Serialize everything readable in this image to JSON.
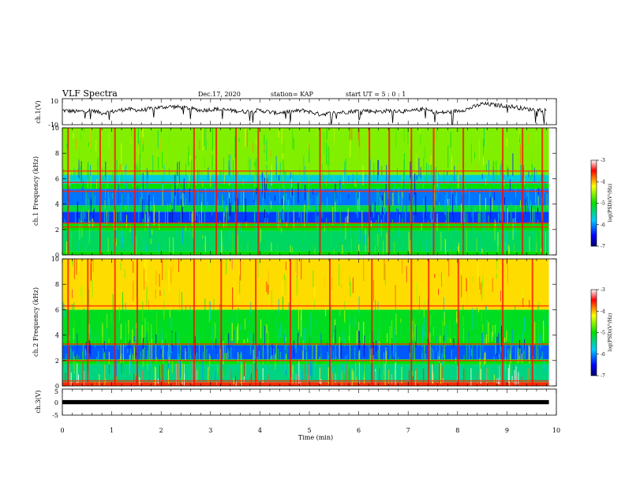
{
  "header": {
    "title": "VLF Spectra",
    "date": "Dec.17, 2020",
    "station": "station= KAP",
    "start": "start  UT  =   5 : 0  : 1"
  },
  "chart_data": [
    {
      "type": "line",
      "name": "ch1-waveform",
      "ylabel": "ch.1(V)",
      "ylim": [
        -10,
        10
      ],
      "yticks": [
        "10",
        "-10"
      ],
      "x": [
        0.0,
        0.3,
        0.6,
        0.8,
        1.0,
        1.3,
        1.6,
        1.9,
        2.2,
        2.5,
        2.8,
        3.1,
        3.4,
        3.7,
        4.0,
        4.3,
        4.6,
        4.9,
        5.2,
        5.5,
        5.8,
        6.1,
        6.4,
        6.7,
        7.0,
        7.3,
        7.6,
        7.9,
        8.2,
        8.5,
        8.8,
        9.1,
        9.4,
        9.8
      ],
      "y": [
        1,
        0,
        1,
        -1,
        0,
        2,
        1,
        3,
        4,
        3,
        1,
        2,
        1,
        0,
        1,
        -1,
        0,
        1,
        -2,
        -1,
        0,
        1,
        0,
        1,
        0,
        2,
        -1,
        0,
        2,
        6,
        5,
        4,
        2,
        1
      ]
    },
    {
      "type": "heatmap",
      "name": "ch1-spectrogram",
      "ylabel": "ch.1 Frequency (kHz)",
      "ylim": [
        0,
        10
      ],
      "yticks": [
        "0",
        "2",
        "4",
        "6",
        "8",
        "10"
      ],
      "xlim": [
        0,
        10
      ],
      "colorbar": {
        "label": "log(PSD)(V²/Hz)",
        "ticks": [
          "-3",
          "-4",
          "-5",
          "-6",
          "-7"
        ],
        "range": [
          -7,
          -3
        ]
      },
      "bands_khz": [
        {
          "from": 0.0,
          "to": 0.3,
          "level": -5.0
        },
        {
          "from": 0.3,
          "to": 1.9,
          "level": -5.3
        },
        {
          "from": 1.9,
          "to": 2.5,
          "level": -5.0
        },
        {
          "from": 2.5,
          "to": 3.4,
          "level": -6.3
        },
        {
          "from": 3.4,
          "to": 3.9,
          "level": -5.2
        },
        {
          "from": 3.9,
          "to": 5.2,
          "level": -6.1
        },
        {
          "from": 5.2,
          "to": 5.6,
          "level": -5.0
        },
        {
          "from": 5.6,
          "to": 6.3,
          "level": -5.7
        },
        {
          "from": 6.3,
          "to": 10.0,
          "level": -4.6
        }
      ],
      "lines_khz": [
        2.2,
        2.5,
        5.0,
        5.7,
        6.6
      ],
      "bursts_min": [
        0.1,
        0.75,
        1.05,
        1.45,
        2.65,
        3.1,
        3.5,
        3.95,
        5.2,
        6.2,
        6.6,
        7.05,
        7.5,
        8.1,
        8.9,
        9.3,
        9.7
      ]
    },
    {
      "type": "heatmap",
      "name": "ch2-spectrogram",
      "ylabel": "ch.2 Frequency (kHz)",
      "ylim": [
        0,
        10
      ],
      "yticks": [
        "0",
        "2",
        "4",
        "6",
        "8",
        "10"
      ],
      "xlim": [
        0,
        10
      ],
      "colorbar": {
        "label": "log(PSD)(V²/Hz)",
        "ticks": [
          "-3",
          "-4",
          "-5",
          "-6",
          "-7"
        ],
        "range": [
          -7,
          -3
        ]
      },
      "bands_khz": [
        {
          "from": 0.0,
          "to": 0.3,
          "level": -3.6
        },
        {
          "from": 0.3,
          "to": 1.7,
          "level": -5.4
        },
        {
          "from": 1.7,
          "to": 2.1,
          "level": -5.0
        },
        {
          "from": 2.1,
          "to": 3.2,
          "level": -6.2
        },
        {
          "from": 3.2,
          "to": 3.6,
          "level": -5.0
        },
        {
          "from": 3.6,
          "to": 6.0,
          "level": -5.1
        },
        {
          "from": 6.0,
          "to": 10.0,
          "level": -4.1
        }
      ],
      "lines_khz": [
        0.4,
        2.0,
        3.3,
        6.3
      ],
      "bursts_min": [
        0.1,
        0.5,
        1.05,
        1.5,
        2.65,
        3.2,
        3.9,
        4.6,
        5.4,
        6.25,
        7.05,
        7.4,
        8.0,
        8.9,
        9.5
      ]
    },
    {
      "type": "line",
      "name": "ch3-waveform",
      "ylabel": "ch.3(V)",
      "ylim": [
        -5,
        5
      ],
      "yticks": [
        "5",
        "0",
        "-5"
      ],
      "x": [
        0,
        9.85
      ],
      "y": [
        0,
        0
      ],
      "band_halfwidth_v": 0.8
    }
  ],
  "xaxis": {
    "xlabel": "Time (min)",
    "xlim": [
      0,
      10
    ],
    "ticks": [
      "0",
      "1",
      "2",
      "3",
      "4",
      "5",
      "6",
      "7",
      "8",
      "9",
      "10"
    ]
  }
}
